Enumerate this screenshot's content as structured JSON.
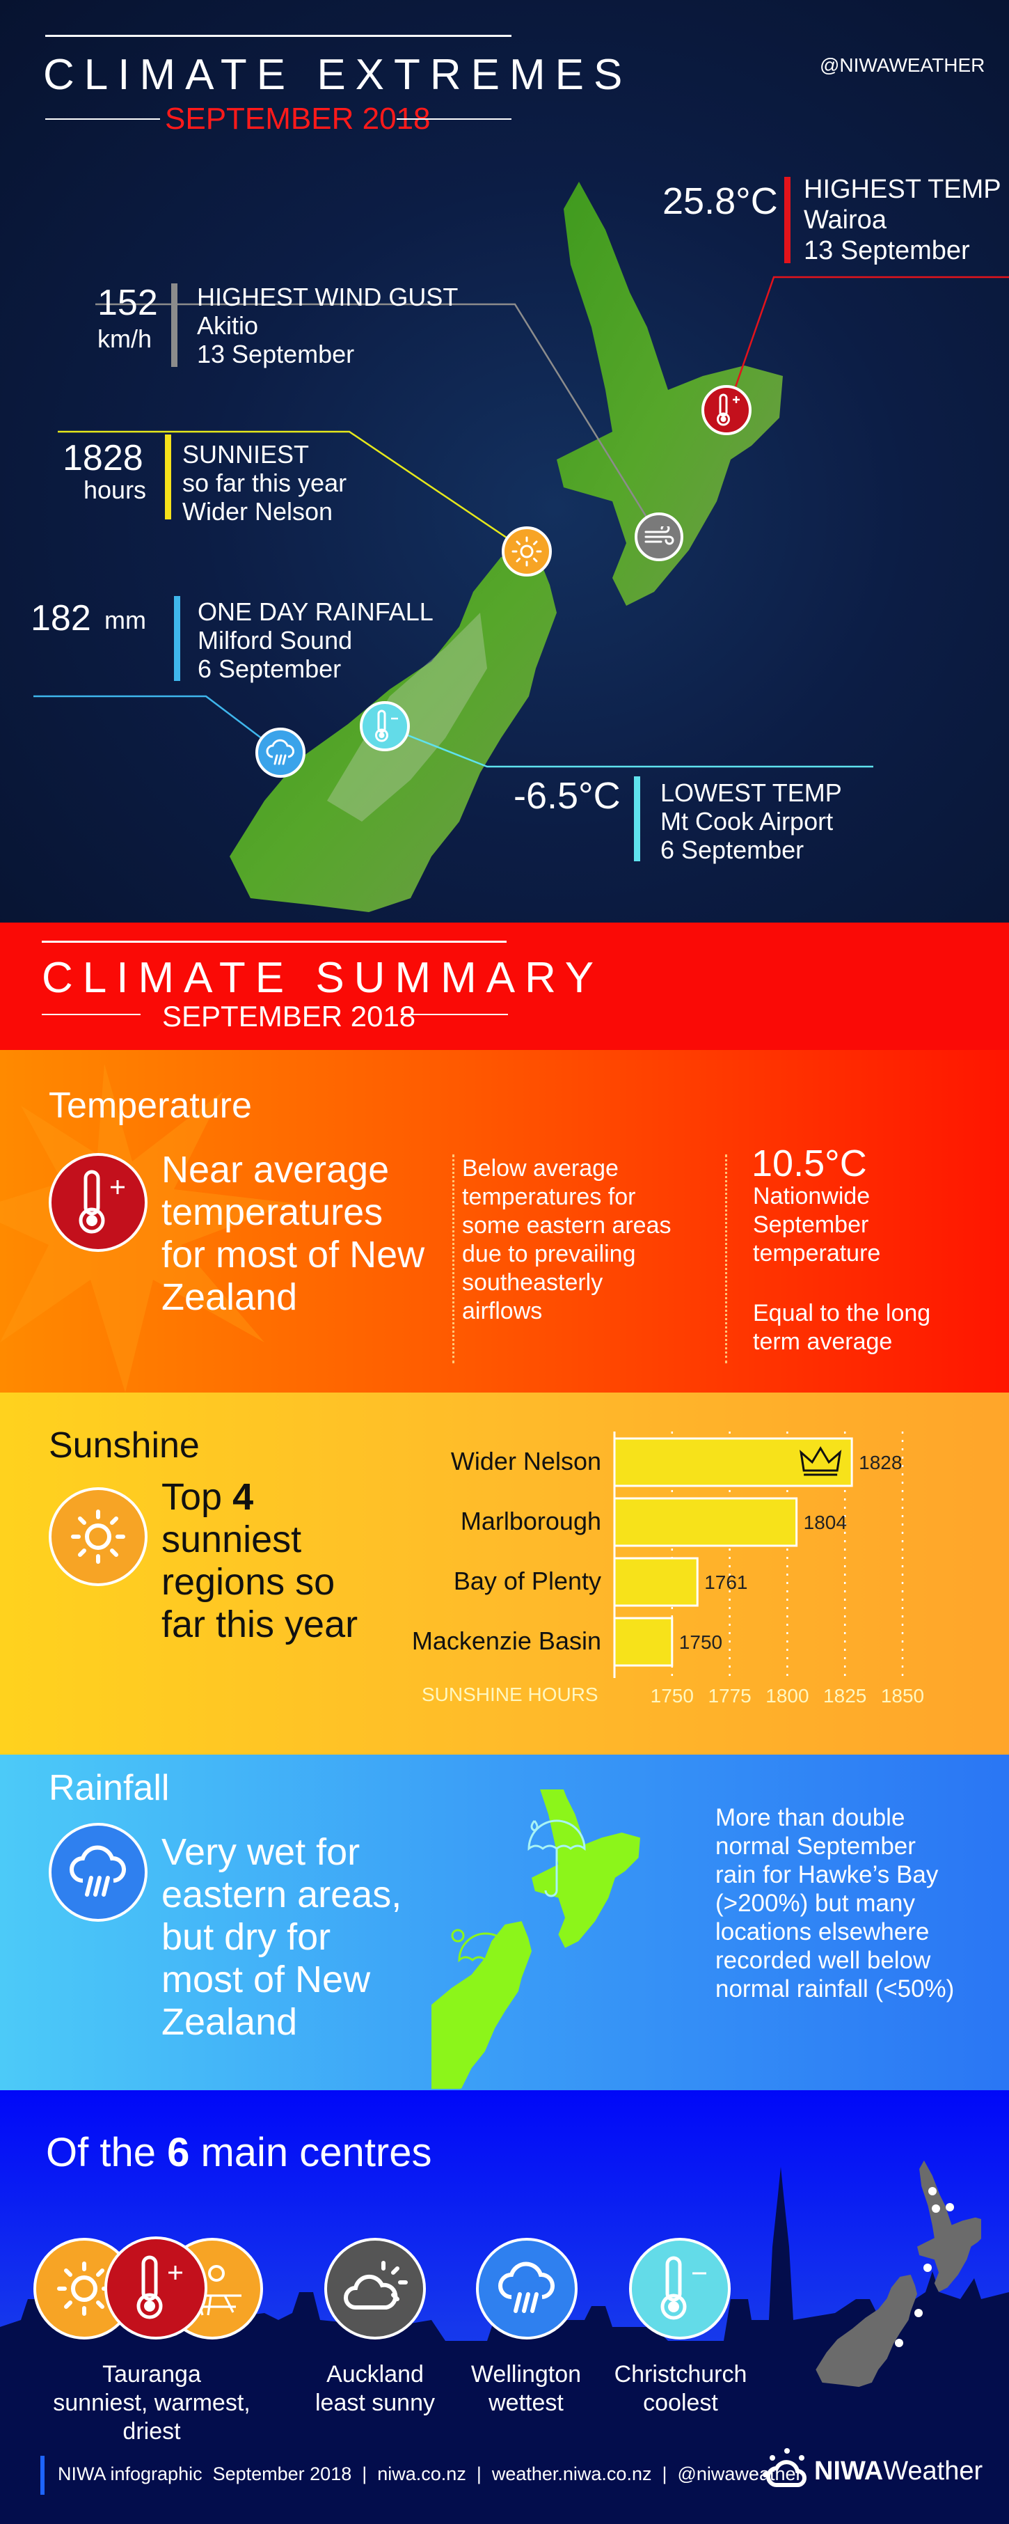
{
  "extremes": {
    "title": "CLIMATE EXTREMES",
    "subtitle": "SEPTEMBER 2018",
    "handle": "@NIWAWEATHER",
    "highest_temp": {
      "value": "25.8°C",
      "label": "HIGHEST TEMP",
      "place": "Wairoa",
      "date": "13 September",
      "color": "#e3131b"
    },
    "wind_gust": {
      "value": "152",
      "unit": "km/h",
      "label": "HIGHEST WIND GUST",
      "place": "Akitio",
      "date": "13 September",
      "color": "#8c8c8c"
    },
    "sunniest": {
      "value": "1828",
      "unit": "hours",
      "label": "SUNNIEST",
      "detail": "so far this year",
      "place": "Wider Nelson",
      "color": "#f5e11b"
    },
    "rainfall": {
      "value": "182",
      "unit": "mm",
      "label": "ONE DAY RAINFALL",
      "place": "Milford Sound",
      "date": "6 September",
      "color": "#3fb6ec"
    },
    "lowest_temp": {
      "value": "-6.5°C",
      "label": "LOWEST TEMP",
      "place": "Mt Cook Airport",
      "date": "6 September",
      "color": "#5fe2ee"
    }
  },
  "summary": {
    "title": "CLIMATE SUMMARY",
    "subtitle": "SEPTEMBER 2018"
  },
  "temperature": {
    "title": "Temperature",
    "lead": [
      "Near average",
      "temperatures",
      "for most of New",
      "Zealand"
    ],
    "detail": [
      "Below average",
      "temperatures for",
      "some eastern areas",
      "due to prevailing",
      "southeasterly",
      "airflows"
    ],
    "national_value": "10.5°C",
    "national_label": [
      "Nationwide",
      "September",
      "temperature"
    ],
    "comparison": [
      "Equal to the long",
      "term average"
    ]
  },
  "sunshine": {
    "title": "Sunshine",
    "lead_prefix": "Top ",
    "lead_number": "4",
    "lead": [
      "sunniest",
      "regions so",
      "far this year"
    ]
  },
  "chart_data": {
    "type": "bar",
    "orientation": "horizontal",
    "categories": [
      "Wider Nelson",
      "Marlborough",
      "Bay of Plenty",
      "Mackenzie Basin"
    ],
    "values": [
      1828,
      1804,
      1761,
      1750
    ],
    "xlabel": "SUNSHINE HOURS",
    "xlim": [
      1725,
      1850
    ],
    "ticks": [
      1750,
      1775,
      1800,
      1825,
      1850
    ],
    "grid": true,
    "bar_color": "#f7e21a",
    "annotation": "crown-icon on Wider Nelson"
  },
  "rainfall": {
    "title": "Rainfall",
    "lead": [
      "Very wet for",
      "eastern areas,",
      "but dry for",
      "most of New",
      "Zealand"
    ],
    "detail": [
      "More than double",
      "normal September",
      "rain for Hawke’s Bay",
      "(>200%) but many",
      "locations elsewhere",
      "recorded well below",
      "normal rainfall (<50%)"
    ]
  },
  "centres": {
    "title_prefix": "Of the ",
    "title_number": "6",
    "title_suffix": " main centres",
    "items": [
      {
        "city": "Tauranga",
        "desc": "sunniest, warmest,",
        "desc2": "driest"
      },
      {
        "city": "Auckland",
        "desc": "least sunny"
      },
      {
        "city": "Wellington",
        "desc": "wettest"
      },
      {
        "city": "Christchurch",
        "desc": "coolest"
      }
    ]
  },
  "footer": {
    "text": "NIWA infographic  September 2018  |  niwa.co.nz  |  weather.niwa.co.nz  |  @niwaweather",
    "logo_bold": "NIWA",
    "logo_light": "Weather"
  }
}
